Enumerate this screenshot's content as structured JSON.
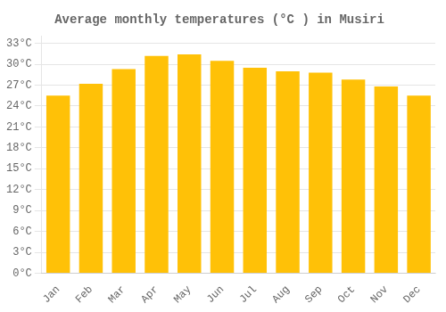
{
  "chart_data": {
    "type": "bar",
    "title": "Average monthly temperatures (°C ) in Musiri",
    "categories": [
      "Jan",
      "Feb",
      "Mar",
      "Apr",
      "May",
      "Jun",
      "Jul",
      "Aug",
      "Sep",
      "Oct",
      "Nov",
      "Dec"
    ],
    "values": [
      25.5,
      27.2,
      29.3,
      31.2,
      31.4,
      30.5,
      29.5,
      29.0,
      28.8,
      27.8,
      26.8,
      25.5
    ],
    "color": "#FFC107",
    "ylim": [
      0,
      34
    ],
    "yticks": [
      {
        "value": 0,
        "label": "0°C"
      },
      {
        "value": 3,
        "label": "3°C"
      },
      {
        "value": 6,
        "label": "6°C"
      },
      {
        "value": 9,
        "label": "9°C"
      },
      {
        "value": 12,
        "label": "12°C"
      },
      {
        "value": 15,
        "label": "15°C"
      },
      {
        "value": 18,
        "label": "18°C"
      },
      {
        "value": 21,
        "label": "21°C"
      },
      {
        "value": 24,
        "label": "24°C"
      },
      {
        "value": 27,
        "label": "27°C"
      },
      {
        "value": 30,
        "label": "30°C"
      },
      {
        "value": 33,
        "label": "33°C"
      }
    ],
    "grid": true
  }
}
